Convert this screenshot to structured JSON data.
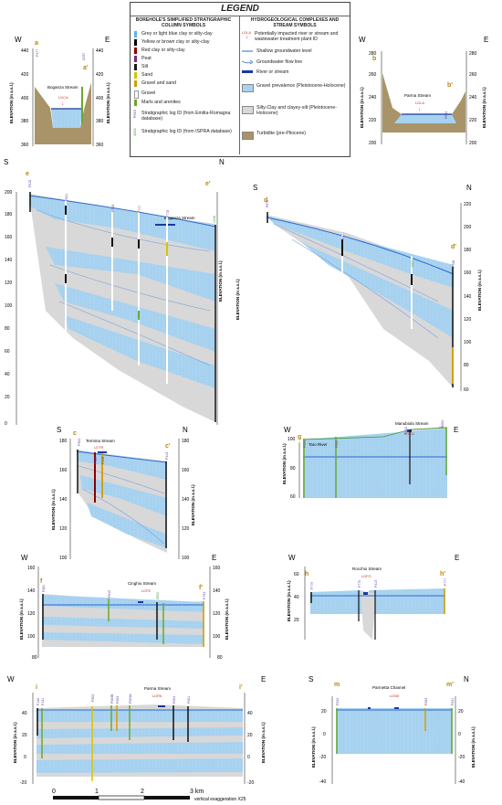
{
  "legend": {
    "title": "LEGEND",
    "col1_head": "BOREHOLE'S SIMPLIFIED STRATIGRAPHIC COLUMN SYMBOLS",
    "col2_head": "HYDROGEOLOGICAL COMPLEXES AND STREAM SYMBOLS",
    "col1_items": [
      {
        "label": "Grey or light blue clay or silty-clay",
        "color": "#5fb3e3"
      },
      {
        "label": "Yellow or brown clay or silty-clay",
        "color": "#000000"
      },
      {
        "label": "Red clay or silty-clay",
        "color": "#8b0000"
      },
      {
        "label": "Peat",
        "color": "#7a2a7a"
      },
      {
        "label": "Silt",
        "color": "#1a1a1a"
      },
      {
        "label": "Sand",
        "color": "#d4c400"
      },
      {
        "label": "Gravel and sand",
        "color": "#c8a000"
      },
      {
        "label": "Gravel",
        "color": "#ffffff"
      },
      {
        "label": "Marls and arenites",
        "color": "#6aa82a"
      }
    ],
    "log_er_label": "Stratigraphic log ID (from Emilia-Romagna database)",
    "log_er_code": "P615",
    "log_ispra_label": "Stratigraphic log ID (from ISPRA database)",
    "log_ispra_code": "4001",
    "col2_items": {
      "impacted": "Potentially impacted river or stream and wastewater treatment plant ID",
      "impacted_code": "LDLA",
      "gw_level": "Shallow groundwater level",
      "gw_flow": "Groundwater flow line",
      "river": "River or stream",
      "gravel": "Gravel prevalence (Pleistocene-Holocene)",
      "silty": "Silty-Clay and clayey-silt (Pleistocene-Holocene)",
      "turbidite": "Turbidite (pre-Pliocene)"
    },
    "colors": {
      "gravel": "#a9d3f0",
      "silty": "#d8d8d8",
      "turbidite": "#a89468",
      "river": "#1a3aa0",
      "gw": "#2a6ad0"
    }
  },
  "sections": {
    "a": {
      "left_end": "W",
      "right_end": "E",
      "start": "a",
      "end": "a'",
      "stream": "Boganza Stream",
      "plant": "LDCA",
      "logs": [
        "P477",
        "C057",
        "P876"
      ],
      "left_ticks": [
        "440",
        "420",
        "400",
        "380",
        "360"
      ],
      "right_ticks": [
        "440",
        "420",
        "400",
        "380",
        "360"
      ],
      "axis_label": "ELEVATION (m a.s.l.)"
    },
    "b": {
      "left_end": "W",
      "right_end": "E",
      "start": "b",
      "end": "b'",
      "stream": "Parma Stream",
      "plant": "LDLA",
      "logs": [
        "P632"
      ],
      "left_ticks": [
        "280",
        "260",
        "240",
        "220",
        "200"
      ],
      "right_ticks": [
        "280",
        "260",
        "240",
        "220",
        "200"
      ],
      "axis_label": "ELEVATION (m a.s.l.)"
    },
    "e": {
      "left_end": "S",
      "right_end": "N",
      "start": "e",
      "end": "e'",
      "stream": "Boganza Stream",
      "logs": [
        "P615",
        "P621",
        "P718",
        "P717",
        "P778",
        "1048"
      ],
      "left_ticks": [
        "200",
        "180",
        "160",
        "140",
        "120",
        "100",
        "80",
        "60",
        "40",
        "20",
        "0"
      ],
      "axis_label": "ELEVATION (m a.s.l.)"
    },
    "d": {
      "left_end": "S",
      "right_end": "N",
      "start": "d",
      "end": "d'",
      "logs": [
        "P876",
        "P877",
        "4003",
        "P728"
      ],
      "right_ticks": [
        "220",
        "200",
        "180",
        "160",
        "140",
        "120",
        "100",
        "80",
        "60"
      ],
      "axis_label": "ELEVATION (m a.s.l.)"
    },
    "c": {
      "left_end": "S",
      "right_end": "N",
      "start": "c",
      "end": "c'",
      "stream": "Termina Stream",
      "plant": "LDTR",
      "logs": [
        "P902",
        "P928",
        "P418",
        "P413"
      ],
      "left_ticks": [
        "180",
        "160",
        "140",
        "120",
        "100"
      ],
      "right_ticks": [
        "180",
        "160",
        "140",
        "120",
        "100"
      ],
      "axis_label": "ELEVATION (m a.s.l.)"
    },
    "g": {
      "left_end": "W",
      "right_end": "E",
      "start": "g",
      "end": "g'",
      "stream1": "Taro River",
      "stream2": "Manubiola Stream",
      "plant": "LDCO",
      "logs": [
        "P024",
        "P025",
        "P042",
        "P052"
      ],
      "left_ticks": [
        "100",
        "80",
        "60"
      ],
      "axis_label": "ELEVATION (m a.s.l.)"
    },
    "f": {
      "left_end": "W",
      "right_end": "E",
      "start": "f",
      "end": "f'",
      "stream": "Cinghio Stream",
      "plant": "LDFE",
      "logs": [
        "P381",
        "P619",
        "5922",
        "P794"
      ],
      "left_ticks": [
        "160",
        "140",
        "120",
        "100",
        "80"
      ],
      "right_ticks": [
        "160",
        "140",
        "120",
        "100",
        "80"
      ],
      "axis_label": "ELEVATION (m a.s.l.)"
    },
    "h": {
      "left_end": "W",
      "right_end": "E",
      "start": "h",
      "end": "h'",
      "stream": "Rocchio Stream",
      "plant": "LDFO",
      "logs": [
        "P779",
        "P770",
        "P413",
        "P777"
      ],
      "left_ticks": [
        "60",
        "40",
        "20"
      ],
      "axis_label": "ELEVATION (m a.s.l.)"
    },
    "i": {
      "left_end": "W",
      "right_end": "E",
      "start": "i",
      "end": "i'",
      "stream": "Parma Stream",
      "plant": "LDPA",
      "logs": [
        "P140",
        "P141",
        "P503",
        "P003B",
        "P003A",
        "P003",
        "P004",
        "P001"
      ],
      "left_ticks": [
        "40",
        "20",
        "0",
        "-20"
      ],
      "right_ticks": [
        "40",
        "20",
        "0",
        "-20"
      ],
      "axis_label": "ELEVATION (m a.s.l.)"
    },
    "m": {
      "left_end": "S",
      "right_end": "N",
      "start": "m",
      "end": "m'",
      "stream": "Parmetta Channel",
      "plant": "LDNE",
      "logs": [
        "P022",
        "P083",
        "P021"
      ],
      "left_ticks": [
        "20",
        "0",
        "-20",
        "-40"
      ],
      "right_ticks": [
        "20",
        "0",
        "-20",
        "-40"
      ],
      "axis_label": "ELEVATION (m a.s.l.)"
    }
  },
  "scale": {
    "ticks": [
      "0",
      "1",
      "2",
      "3 km"
    ],
    "exaggeration": "vertical exaggeration X25"
  }
}
